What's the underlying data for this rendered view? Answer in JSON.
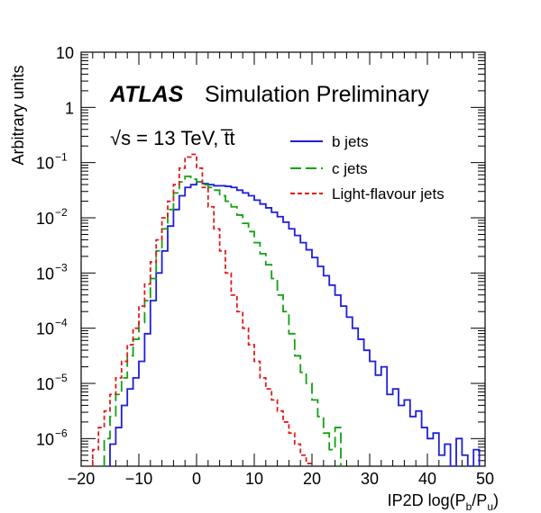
{
  "chart_data": {
    "type": "line",
    "drawstyle": "steps",
    "title": "",
    "xlabel": "IP2D log(P_b/P_u)",
    "xlabel_parts": {
      "main": "IP2D log(P",
      "sub1": "b",
      "mid": "/P",
      "sub2": "u",
      "end": ")"
    },
    "ylabel": "Arbitrary units",
    "xlim": [
      -20,
      50
    ],
    "ylim_log10": [
      -6.5,
      1
    ],
    "yscale": "log",
    "x_ticks": [
      -20,
      -10,
      0,
      10,
      20,
      30,
      40,
      50
    ],
    "x_tick_labels": [
      "−20",
      "−10",
      "0",
      "10",
      "20",
      "30",
      "40",
      "50"
    ],
    "y_ticks": [
      {
        "exp": 1,
        "label": "10",
        "sup": ""
      },
      {
        "exp": 0,
        "label": "1",
        "sup": ""
      },
      {
        "exp": -1,
        "label": "10",
        "sup": "−1"
      },
      {
        "exp": -2,
        "label": "10",
        "sup": "−2"
      },
      {
        "exp": -3,
        "label": "10",
        "sup": "−3"
      },
      {
        "exp": -4,
        "label": "10",
        "sup": "−4"
      },
      {
        "exp": -5,
        "label": "10",
        "sup": "−5"
      },
      {
        "exp": -6,
        "label": "10",
        "sup": "−6"
      }
    ],
    "annotations": {
      "atlas": "ATLAS",
      "label": "Simulation Preliminary",
      "energy": "√s = 13 TeV, t̅t"
    },
    "legend_position": "top-right",
    "series": [
      {
        "name": "b jets",
        "color": "#1f1fd6",
        "dash": "solid",
        "x": [
          -15,
          -14,
          -13,
          -12,
          -11,
          -10,
          -9,
          -8,
          -7,
          -6,
          -5,
          -4,
          -3,
          -2,
          -1,
          0,
          1,
          2,
          3,
          4,
          5,
          6,
          7,
          8,
          9,
          10,
          11,
          12,
          13,
          14,
          15,
          16,
          17,
          18,
          19,
          20,
          21,
          22,
          23,
          24,
          25,
          26,
          27,
          28,
          29,
          30,
          31,
          32,
          33,
          34,
          35,
          36,
          37,
          38,
          39,
          40,
          41,
          42,
          43,
          44,
          45,
          46,
          47,
          48
        ],
        "logy": [
          -6.1,
          -5.8,
          -5.4,
          -5.1,
          -4.9,
          -4.6,
          -4.1,
          -3.5,
          -3.0,
          -2.6,
          -2.15,
          -1.85,
          -1.6,
          -1.45,
          -1.4,
          -1.35,
          -1.38,
          -1.4,
          -1.42,
          -1.42,
          -1.43,
          -1.45,
          -1.5,
          -1.55,
          -1.6,
          -1.68,
          -1.75,
          -1.82,
          -1.9,
          -1.98,
          -2.08,
          -2.2,
          -2.32,
          -2.45,
          -2.58,
          -2.72,
          -2.88,
          -3.05,
          -3.22,
          -3.4,
          -3.6,
          -3.8,
          -4.0,
          -4.2,
          -4.4,
          -4.6,
          -4.85,
          -4.7,
          -5.2,
          -5.1,
          -5.4,
          -5.3,
          -5.6,
          -5.5,
          -5.8,
          -6.0,
          -5.9,
          -6.3,
          -6.1,
          -6.5,
          -6.0,
          -6.3,
          -6.5,
          -6.2
        ]
      },
      {
        "name": "c jets",
        "color": "#13a013",
        "dash": "long-dash",
        "x": [
          -16,
          -15,
          -14,
          -13,
          -12,
          -11,
          -10,
          -9,
          -8,
          -7,
          -6,
          -5,
          -4,
          -3,
          -2,
          -1,
          0,
          1,
          2,
          3,
          4,
          5,
          6,
          7,
          8,
          9,
          10,
          11,
          12,
          13,
          14,
          15,
          16,
          17,
          18,
          19,
          20,
          21,
          22,
          23,
          24
        ],
        "logy": [
          -6.0,
          -5.6,
          -5.2,
          -4.9,
          -4.5,
          -4.2,
          -3.9,
          -3.5,
          -3.1,
          -2.6,
          -2.2,
          -1.85,
          -1.55,
          -1.35,
          -1.25,
          -1.3,
          -1.35,
          -1.4,
          -1.45,
          -1.5,
          -1.6,
          -1.7,
          -1.8,
          -1.95,
          -2.1,
          -2.25,
          -2.45,
          -2.65,
          -2.85,
          -3.1,
          -3.4,
          -3.7,
          -4.1,
          -4.5,
          -4.8,
          -5.0,
          -5.3,
          -5.6,
          -5.9,
          -6.2,
          -5.8
        ]
      },
      {
        "name": "Light-flavour jets",
        "color": "#e01a1a",
        "dash": "short-dash",
        "x": [
          -18,
          -17,
          -16,
          -15,
          -14,
          -13,
          -12,
          -11,
          -10,
          -9,
          -8,
          -7,
          -6,
          -5,
          -4,
          -3,
          -2,
          -1,
          0,
          1,
          2,
          3,
          4,
          5,
          6,
          7,
          8,
          9,
          10,
          11,
          12,
          13,
          14,
          15,
          16,
          17,
          18,
          19
        ],
        "logy": [
          -6.2,
          -5.8,
          -5.5,
          -5.2,
          -4.9,
          -4.6,
          -4.3,
          -4.0,
          -3.6,
          -3.2,
          -2.8,
          -2.4,
          -2.0,
          -1.7,
          -1.4,
          -1.1,
          -0.9,
          -0.85,
          -1.1,
          -1.45,
          -1.8,
          -2.2,
          -2.6,
          -3.0,
          -3.4,
          -3.7,
          -4.0,
          -4.3,
          -4.6,
          -4.9,
          -5.1,
          -5.3,
          -5.5,
          -5.7,
          -5.9,
          -6.1,
          -6.3,
          -6.45
        ]
      }
    ]
  }
}
